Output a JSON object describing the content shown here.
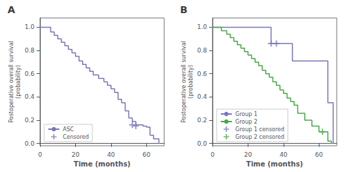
{
  "chart_data": [
    {
      "type": "line",
      "title": "A",
      "xlabel": "Time (months)",
      "ylabel": "Postoperative overall survival\n(probability)",
      "xlim": [
        0,
        70
      ],
      "ylim": [
        -0.02,
        1.08
      ],
      "xticks": [
        0,
        20,
        40,
        60
      ],
      "yticks": [
        {
          "value": 0.0,
          "label": "0.0"
        },
        0.2,
        0.4,
        0.6,
        0.8,
        {
          "value": 1.0,
          "label": "1.0"
        }
      ],
      "grid": false,
      "legend": "lower left",
      "series": [
        {
          "name": "ASC",
          "type": "line",
          "line_style": "step",
          "color": "#7777bb",
          "x": [
            0,
            3,
            6,
            8,
            10,
            12,
            14,
            16,
            18,
            20,
            22,
            24,
            26,
            28,
            30,
            33,
            36,
            38,
            40,
            42,
            44,
            46,
            48,
            50,
            52,
            54,
            58,
            60,
            62,
            64,
            67
          ],
          "values": [
            1.0,
            1.0,
            0.96,
            0.93,
            0.9,
            0.87,
            0.84,
            0.81,
            0.78,
            0.75,
            0.71,
            0.68,
            0.65,
            0.62,
            0.59,
            0.56,
            0.53,
            0.5,
            0.47,
            0.44,
            0.38,
            0.35,
            0.28,
            0.22,
            0.19,
            0.16,
            0.15,
            0.14,
            0.07,
            0.04,
            0.0
          ]
        },
        {
          "name": "Censored",
          "type": "scatter",
          "marker": "+",
          "color": "#7777bb",
          "x": [
            52,
            54
          ],
          "values": [
            0.16,
            0.15
          ]
        }
      ]
    },
    {
      "type": "line",
      "title": "B",
      "xlabel": "Time (months)",
      "ylabel": "Postoperative overall survival\n(probability)",
      "xlim": [
        0,
        70
      ],
      "ylim": [
        -0.02,
        1.08
      ],
      "xticks": [
        0,
        20,
        40,
        60
      ],
      "yticks": [
        {
          "value": 0.0,
          "label": "0.0"
        },
        0.2,
        0.4,
        0.6,
        0.8,
        {
          "value": 1.0,
          "label": "1.0"
        }
      ],
      "grid": false,
      "legend": "lower left",
      "series": [
        {
          "name": "Group 1",
          "type": "line",
          "line_style": "step",
          "color": "#7777bb",
          "x": [
            0,
            12,
            15,
            30,
            32,
            33,
            40,
            42,
            45,
            63,
            65,
            68
          ],
          "values": [
            1.0,
            1.0,
            1.0,
            1.0,
            1.0,
            0.86,
            0.86,
            0.86,
            0.71,
            0.71,
            0.35,
            0.0
          ]
        },
        {
          "name": "Group 2",
          "type": "line",
          "line_style": "step",
          "color": "#44aa44",
          "x": [
            0,
            3,
            5,
            8,
            10,
            12,
            14,
            16,
            18,
            20,
            22,
            24,
            26,
            28,
            30,
            32,
            34,
            36,
            38,
            40,
            42,
            44,
            46,
            48,
            52,
            56,
            60,
            62,
            65,
            67
          ],
          "values": [
            1.0,
            1.0,
            0.97,
            0.94,
            0.91,
            0.88,
            0.85,
            0.82,
            0.79,
            0.76,
            0.73,
            0.7,
            0.67,
            0.63,
            0.6,
            0.57,
            0.53,
            0.5,
            0.46,
            0.43,
            0.39,
            0.36,
            0.33,
            0.26,
            0.2,
            0.15,
            0.1,
            0.1,
            0.02,
            0.0
          ]
        },
        {
          "name": "Group 1 censored",
          "type": "scatter",
          "marker": "+",
          "color": "#7777bb",
          "x": [
            33,
            36
          ],
          "values": [
            0.86,
            0.86
          ]
        },
        {
          "name": "Group 2 censored",
          "type": "scatter",
          "marker": "+",
          "color": "#44aa44",
          "x": [
            62
          ],
          "values": [
            0.1
          ]
        }
      ]
    }
  ]
}
